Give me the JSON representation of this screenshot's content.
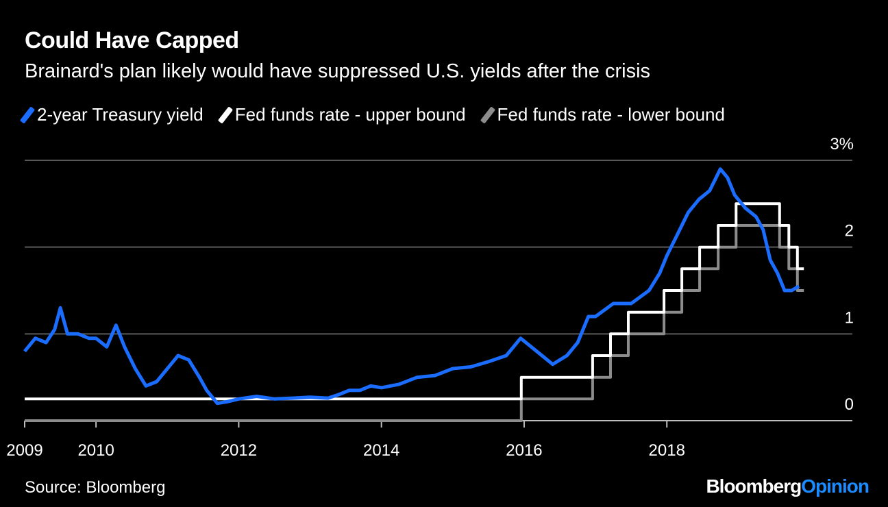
{
  "title": "Could Have Capped",
  "subtitle": "Brainard's plan likely would have suppressed U.S. yields after the crisis",
  "source": "Source: Bloomberg",
  "brand": {
    "part1": "Bloomberg",
    "part2": "Opinion"
  },
  "colors": {
    "yield": "#1a6dff",
    "upper": "#ffffff",
    "lower": "#8c8c8c",
    "grid": "#5a5a5a",
    "accent": "#1a8cff"
  },
  "chart_data": {
    "type": "line",
    "title": "Could Have Capped",
    "subtitle": "Brainard's plan likely would have suppressed U.S. yields after the crisis",
    "xlim": [
      2009.0,
      2020.6
    ],
    "ylim": [
      0,
      3
    ],
    "x_ticks": [
      2009,
      2010,
      2012,
      2014,
      2016,
      2018
    ],
    "x_tick_labels": [
      "2009",
      "2010",
      "2012",
      "2014",
      "2016",
      "2018"
    ],
    "y_ticks": [
      0,
      1,
      2,
      3
    ],
    "y_tick_labels": [
      "0",
      "1",
      "2",
      "3%"
    ],
    "grid": true,
    "legend_position": "top-left",
    "series": [
      {
        "name": "2-year Treasury yield",
        "color": "#1a6dff",
        "x": [
          2009.0,
          2009.15,
          2009.3,
          2009.42,
          2009.5,
          2009.6,
          2009.75,
          2009.9,
          2010.0,
          2010.15,
          2010.28,
          2010.4,
          2010.55,
          2010.7,
          2010.85,
          2011.0,
          2011.15,
          2011.3,
          2011.45,
          2011.55,
          2011.7,
          2011.85,
          2012.0,
          2012.25,
          2012.5,
          2012.75,
          2013.0,
          2013.25,
          2013.4,
          2013.55,
          2013.7,
          2013.85,
          2014.0,
          2014.25,
          2014.5,
          2014.75,
          2015.0,
          2015.25,
          2015.5,
          2015.75,
          2015.95,
          2016.1,
          2016.25,
          2016.4,
          2016.6,
          2016.75,
          2016.9,
          2017.0,
          2017.25,
          2017.5,
          2017.75,
          2017.9,
          2018.0,
          2018.15,
          2018.3,
          2018.45,
          2018.6,
          2018.75,
          2018.85,
          2018.95,
          2019.1,
          2019.25,
          2019.35,
          2019.45,
          2019.55,
          2019.65,
          2019.75,
          2019.85
        ],
        "y": [
          0.8,
          0.95,
          0.9,
          1.05,
          1.3,
          1.0,
          1.0,
          0.95,
          0.95,
          0.85,
          1.1,
          0.85,
          0.6,
          0.4,
          0.45,
          0.6,
          0.75,
          0.7,
          0.5,
          0.35,
          0.2,
          0.22,
          0.25,
          0.28,
          0.25,
          0.26,
          0.27,
          0.26,
          0.3,
          0.35,
          0.35,
          0.4,
          0.38,
          0.42,
          0.5,
          0.52,
          0.6,
          0.62,
          0.68,
          0.75,
          0.95,
          0.85,
          0.75,
          0.65,
          0.75,
          0.9,
          1.2,
          1.2,
          1.35,
          1.35,
          1.5,
          1.7,
          1.9,
          2.15,
          2.4,
          2.55,
          2.65,
          2.9,
          2.8,
          2.6,
          2.45,
          2.35,
          2.2,
          1.85,
          1.7,
          1.5,
          1.5,
          1.55
        ]
      },
      {
        "name": "Fed funds rate - upper bound",
        "color": "#ffffff",
        "x": [
          2009.0,
          2015.96,
          2015.96,
          2016.96,
          2016.96,
          2017.21,
          2017.21,
          2017.46,
          2017.46,
          2017.96,
          2017.96,
          2018.21,
          2018.21,
          2018.46,
          2018.46,
          2018.72,
          2018.72,
          2018.97,
          2018.97,
          2019.58,
          2019.58,
          2019.71,
          2019.71,
          2019.83,
          2019.83,
          2019.92
        ],
        "y": [
          0.25,
          0.25,
          0.5,
          0.5,
          0.75,
          0.75,
          1.0,
          1.0,
          1.25,
          1.25,
          1.5,
          1.5,
          1.75,
          1.75,
          2.0,
          2.0,
          2.25,
          2.25,
          2.5,
          2.5,
          2.25,
          2.25,
          2.0,
          2.0,
          1.75,
          1.75
        ]
      },
      {
        "name": "Fed funds rate - lower bound",
        "color": "#8c8c8c",
        "x": [
          2009.0,
          2015.96,
          2015.96,
          2016.96,
          2016.96,
          2017.21,
          2017.21,
          2017.46,
          2017.46,
          2017.96,
          2017.96,
          2018.21,
          2018.21,
          2018.46,
          2018.46,
          2018.72,
          2018.72,
          2018.97,
          2018.97,
          2019.58,
          2019.58,
          2019.71,
          2019.71,
          2019.83,
          2019.83,
          2019.92
        ],
        "y": [
          0.0,
          0.0,
          0.25,
          0.25,
          0.5,
          0.5,
          0.75,
          0.75,
          1.0,
          1.0,
          1.25,
          1.25,
          1.5,
          1.5,
          1.75,
          1.75,
          2.0,
          2.0,
          2.25,
          2.25,
          2.0,
          2.0,
          1.75,
          1.75,
          1.5,
          1.5
        ]
      }
    ]
  }
}
